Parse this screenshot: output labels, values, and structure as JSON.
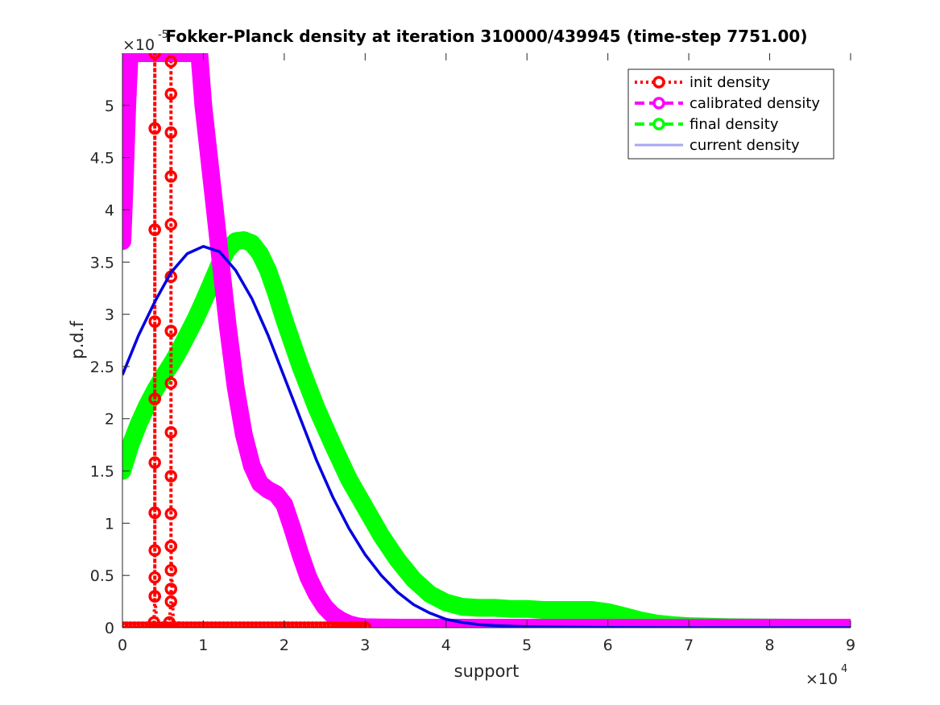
{
  "chart_data": {
    "type": "line",
    "title": "Fokker-Planck density at iteration 310000/439945 (time-step 7751.00)",
    "xlabel": "support",
    "ylabel": "p.d.f",
    "xlim": [
      0,
      90000
    ],
    "ylim": [
      0,
      5.5e-05
    ],
    "x_exponent_label": "×10",
    "x_exponent_power": "4",
    "y_exponent_label": "×10",
    "y_exponent_power": "-5",
    "x_ticks": [
      0,
      10000,
      20000,
      30000,
      40000,
      50000,
      60000,
      70000,
      80000,
      90000
    ],
    "x_tick_labels": [
      "0",
      "1",
      "2",
      "3",
      "4",
      "5",
      "6",
      "7",
      "8",
      "9"
    ],
    "y_ticks": [
      0,
      5e-06,
      1e-05,
      1.5e-05,
      2e-05,
      2.5e-05,
      3e-05,
      3.5e-05,
      4e-05,
      4.5e-05,
      5e-05
    ],
    "y_tick_labels": [
      "0",
      "0.5",
      "1",
      "1.5",
      "2",
      "2.5",
      "3",
      "3.5",
      "4",
      "4.5",
      "5"
    ],
    "grid": false,
    "legend_position": "top-right",
    "series": [
      {
        "name": "init density",
        "color": "#ff0000",
        "style": "dotted-circles",
        "x": [
          0,
          3500,
          3900,
          4000,
          4000,
          4000,
          4000,
          4000,
          4000,
          4000,
          4000,
          4000,
          4000,
          4000,
          4000,
          4000,
          4000,
          4000,
          4300,
          5500,
          5800,
          6000,
          6000,
          6000,
          6000,
          6000,
          6000,
          6000,
          6000,
          6000,
          6000,
          6000,
          6000,
          6000,
          6000,
          6000,
          6000,
          6000,
          6300,
          7000,
          10000,
          20000,
          30000
        ],
        "y": [
          0,
          0,
          5e-07,
          3e-06,
          4.8e-06,
          7.4e-06,
          1.1e-05,
          1.58e-05,
          2.19e-05,
          2.93e-05,
          3.81e-05,
          4.78e-05,
          5.5e-05,
          4.78e-05,
          3.81e-05,
          2.19e-05,
          1.1e-05,
          3e-06,
          0,
          0,
          5e-07,
          2.5e-06,
          3.7e-06,
          5.5e-06,
          7.8e-06,
          1.09e-05,
          1.45e-05,
          1.87e-05,
          2.34e-05,
          2.84e-05,
          3.36e-05,
          3.86e-05,
          4.32e-05,
          4.74e-05,
          5.11e-05,
          5.42e-05,
          2.84e-05,
          7.8e-06,
          0,
          0,
          0,
          0,
          0
        ]
      },
      {
        "name": "calibrated density",
        "color": "#ff00ff",
        "style": "dashed-circles",
        "x": [
          0,
          300,
          600,
          900,
          1000,
          9500,
          10000,
          11000,
          12000,
          13000,
          14000,
          15000,
          16000,
          17000,
          18000,
          19000,
          20000,
          21000,
          22000,
          23000,
          24000,
          25000,
          26000,
          27000,
          28000,
          29000,
          30000,
          32000,
          35000,
          40000,
          50000,
          60000,
          70000,
          80000,
          90000
        ],
        "y": [
          3.7e-05,
          4.3e-05,
          5e-05,
          5.5e-05,
          5.5e-05,
          5.5e-05,
          5e-05,
          4.3e-05,
          3.6e-05,
          2.9e-05,
          2.3e-05,
          1.85e-05,
          1.55e-05,
          1.38e-05,
          1.32e-05,
          1.28e-05,
          1.18e-05,
          9.5e-06,
          7e-06,
          4.8e-06,
          3.2e-06,
          2e-06,
          1.2e-06,
          7e-07,
          3.5e-07,
          1.5e-07,
          5e-08,
          2e-08,
          0,
          0,
          0,
          0,
          0,
          0,
          0
        ]
      },
      {
        "name": "final density",
        "color": "#00ff00",
        "style": "dashed-circles",
        "x": [
          0,
          1000,
          2000,
          3000,
          4000,
          5000,
          6000,
          7000,
          8000,
          9000,
          10000,
          11000,
          12000,
          13000,
          14000,
          15000,
          16000,
          17000,
          18000,
          19000,
          20000,
          22000,
          24000,
          26000,
          28000,
          30000,
          32000,
          34000,
          36000,
          38000,
          40000,
          42000,
          44000,
          46000,
          48000,
          50000,
          52000,
          54000,
          56000,
          58000,
          60000,
          62000,
          64000,
          66000,
          68000,
          70000,
          75000,
          80000,
          85000,
          90000
        ],
        "y": [
          1.5e-05,
          1.75e-05,
          1.95e-05,
          2.12e-05,
          2.27e-05,
          2.4e-05,
          2.52e-05,
          2.65e-05,
          2.8e-05,
          2.95e-05,
          3.12e-05,
          3.3e-05,
          3.48e-05,
          3.62e-05,
          3.7e-05,
          3.71e-05,
          3.68e-05,
          3.58e-05,
          3.42e-05,
          3.2e-05,
          2.95e-05,
          2.5e-05,
          2.1e-05,
          1.75e-05,
          1.42e-05,
          1.15e-05,
          8.8e-06,
          6.5e-06,
          4.6e-06,
          3.2e-06,
          2.4e-06,
          2e-06,
          1.9e-06,
          1.9e-06,
          1.8e-06,
          1.8e-06,
          1.7e-06,
          1.7e-06,
          1.7e-06,
          1.7e-06,
          1.5e-06,
          1.1e-06,
          7e-07,
          4e-07,
          2.5e-07,
          1.5e-07,
          5e-08,
          2e-08,
          0,
          0
        ]
      },
      {
        "name": "current density",
        "color": "#0000e0",
        "legend_color": "#a8a8f5",
        "legend_text_color": "#aaaaaa",
        "style": "solid",
        "x": [
          0,
          2000,
          4000,
          6000,
          8000,
          10000,
          12000,
          14000,
          16000,
          18000,
          20000,
          22000,
          24000,
          26000,
          28000,
          30000,
          32000,
          34000,
          36000,
          38000,
          40000,
          42000,
          44000,
          46000,
          50000,
          55000,
          60000,
          70000,
          80000,
          90000
        ],
        "y": [
          2.42e-05,
          2.8e-05,
          3.12e-05,
          3.4e-05,
          3.58e-05,
          3.65e-05,
          3.6e-05,
          3.42e-05,
          3.15e-05,
          2.8e-05,
          2.4e-05,
          2e-05,
          1.6e-05,
          1.25e-05,
          9.5e-06,
          7e-06,
          5e-06,
          3.4e-06,
          2.2e-06,
          1.4e-06,
          8e-07,
          5e-07,
          3e-07,
          2e-07,
          1e-07,
          5e-08,
          2e-08,
          0,
          0,
          0
        ]
      }
    ]
  }
}
